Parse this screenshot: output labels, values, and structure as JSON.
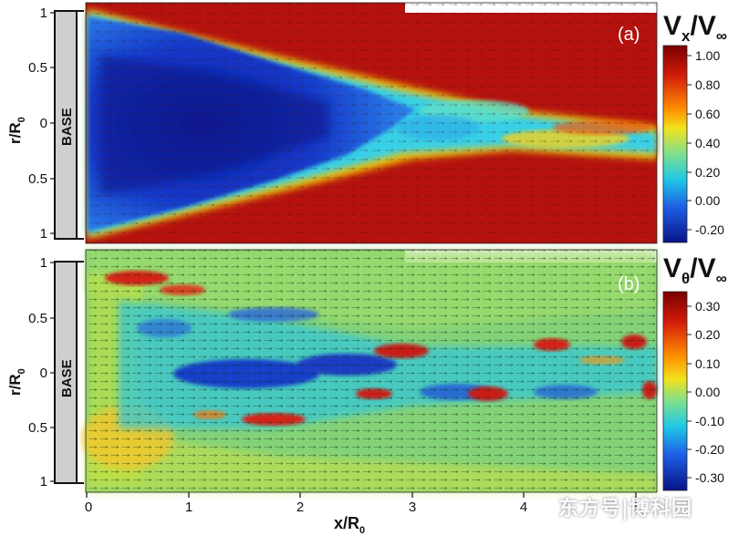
{
  "panel_a": {
    "label": "(a)",
    "base_label": "BASE",
    "y_axis_label": "r/R",
    "y_axis_sub": "0",
    "y_ticks": [
      "1",
      "0.5",
      "0",
      "0.5",
      "1"
    ],
    "colorbar_title": {
      "v": "V",
      "sub": "x",
      "slash": "/",
      "v2": "V",
      "inf": "∞"
    },
    "colorbar_ticks": [
      "1.00",
      "0.80",
      "0.60",
      "0.40",
      "0.20",
      "0.00",
      "-0.20"
    ]
  },
  "panel_b": {
    "label": "(b)",
    "base_label": "BASE",
    "y_axis_label": "r/R",
    "y_axis_sub": "0",
    "y_ticks": [
      "1",
      "0.5",
      "0",
      "0.5",
      "1"
    ],
    "colorbar_title": {
      "v": "V",
      "sub": "θ",
      "slash": "/",
      "v2": "V",
      "inf": "∞"
    },
    "colorbar_ticks": [
      "0.30",
      "0.20",
      "0.10",
      "0.00",
      "-0.10",
      "-0.20",
      "-0.30"
    ]
  },
  "x_axis": {
    "label": "x/R",
    "sub": "0",
    "ticks": [
      "0",
      "1",
      "2",
      "3",
      "4",
      "5"
    ]
  },
  "watermark": "东方号|博科园",
  "colors": {
    "jet_dark_red": "#a80d0d",
    "jet_dark_blue": "#0b1a9e",
    "axis": "#111111"
  }
}
